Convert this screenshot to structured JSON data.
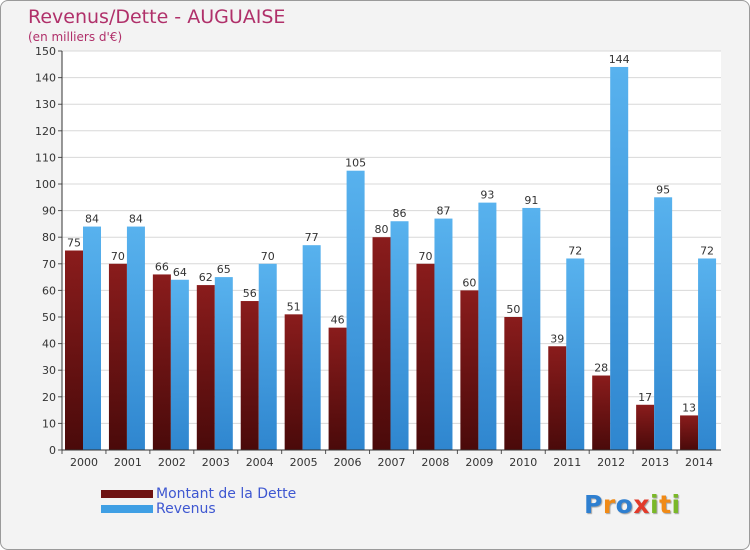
{
  "header": {
    "title": "Revenus/Dette - AUGUAISE",
    "subtitle": "(en milliers d'€)"
  },
  "legend": {
    "items": [
      {
        "label": "Montant de la Dette",
        "color": "#6e1212"
      },
      {
        "label": "Revenus",
        "color": "#3f9fe4"
      }
    ]
  },
  "logo": {
    "text": "Proxiti",
    "letters": [
      {
        "ch": "P",
        "color": "#2e7fd0"
      },
      {
        "ch": "r",
        "color": "#f08a16"
      },
      {
        "ch": "o",
        "color": "#2e7fd0"
      },
      {
        "ch": "x",
        "color": "#e23a2a"
      },
      {
        "ch": "i",
        "color": "#7ab828"
      },
      {
        "ch": "t",
        "color": "#f08a16"
      },
      {
        "ch": "i",
        "color": "#7ab828"
      }
    ]
  },
  "chart_data": {
    "type": "bar",
    "title": "Revenus/Dette - AUGUAISE",
    "subtitle": "(en milliers d'€)",
    "categories": [
      "2000",
      "2001",
      "2002",
      "2003",
      "2004",
      "2005",
      "2006",
      "2007",
      "2008",
      "2009",
      "2010",
      "2011",
      "2012",
      "2013",
      "2014"
    ],
    "series": [
      {
        "name": "Montant de la Dette",
        "color": "#6e1212",
        "values": [
          75,
          70,
          66,
          62,
          56,
          51,
          46,
          80,
          70,
          60,
          50,
          39,
          28,
          17,
          13
        ]
      },
      {
        "name": "Revenus",
        "color": "#3f9fe4",
        "values": [
          84,
          84,
          64,
          65,
          70,
          77,
          105,
          86,
          87,
          93,
          91,
          72,
          144,
          95,
          72
        ]
      }
    ],
    "yticks": [
      0,
      10,
      20,
      30,
      40,
      50,
      60,
      70,
      80,
      90,
      100,
      110,
      120,
      130,
      140,
      150
    ],
    "ylim": [
      0,
      150
    ],
    "grid": true,
    "legend_position": "bottom-left"
  }
}
